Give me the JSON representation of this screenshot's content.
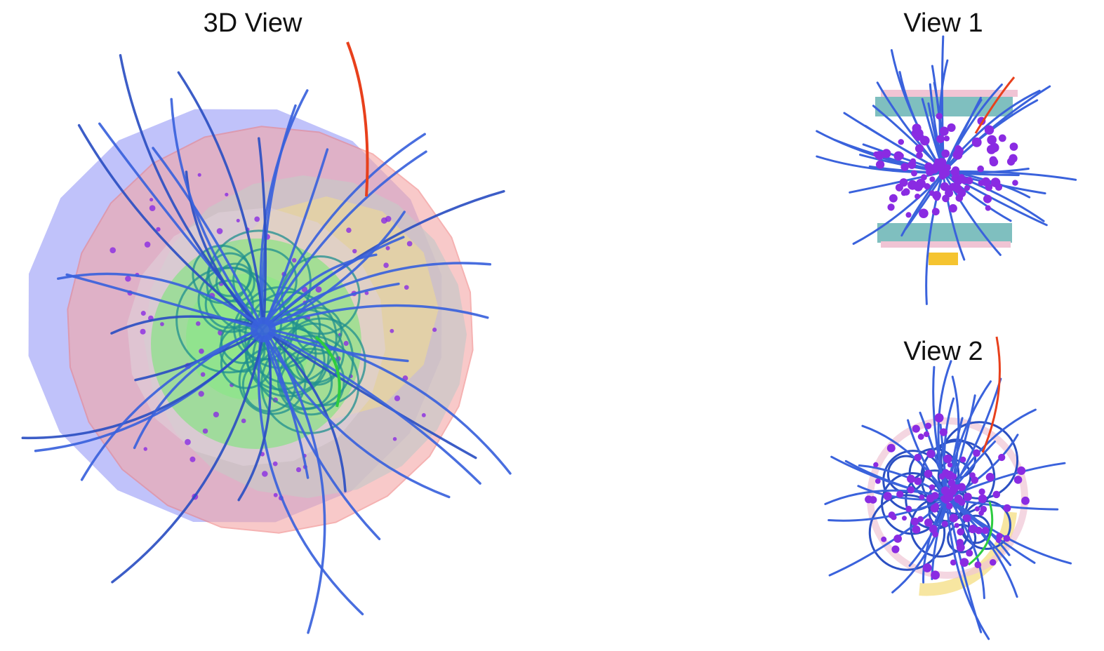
{
  "panels": {
    "main": {
      "title": "3D View"
    },
    "view1": {
      "title": "View 1"
    },
    "view2": {
      "title": "View 2"
    }
  },
  "colors": {
    "track": "#3a62dc",
    "track_dark": "#2b4fc2",
    "track_teal": "#1f8f8f",
    "hit": "#8a2be2",
    "highlight_red": "#e8401c",
    "highlight_green": "#2ecc40",
    "detector_green": "#5cf05c",
    "detector_red": "#f4a6a6",
    "detector_blue": "#8d8ff5",
    "detector_grey": "#c8c8c8",
    "detector_yellow": "#f5e08a",
    "detector_teal": "#7fbfbf",
    "detector_pink": "#f0c4d4",
    "detector_orange": "#f5c430"
  }
}
